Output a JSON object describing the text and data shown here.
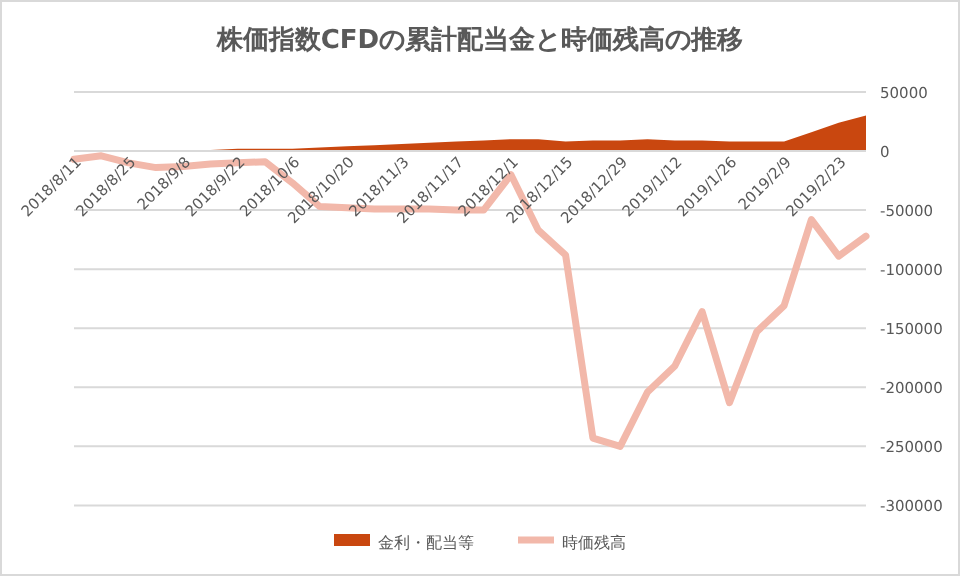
{
  "chart_data": {
    "type": "line",
    "title": "株価指数CFDの累計配当金と時価残高の推移",
    "categories": [
      "2018/8/11",
      null,
      "2018/8/25",
      null,
      "2018/9/8",
      null,
      "2018/9/22",
      null,
      "2018/10/6",
      null,
      "2018/10/20",
      null,
      "2018/11/3",
      null,
      "2018/11/17",
      null,
      "2018/12/1",
      null,
      "2018/12/15",
      null,
      "2018/12/29",
      null,
      "2019/1/12",
      null,
      "2019/1/26",
      null,
      "2019/2/9",
      null,
      "2019/2/23",
      null
    ],
    "series": [
      {
        "name": "金利・配当等",
        "type": "area",
        "color": "#c9470f",
        "values": [
          0,
          0,
          1000,
          1000,
          1000,
          1000,
          2000,
          2000,
          2000,
          3000,
          4000,
          5000,
          6000,
          7000,
          8000,
          9000,
          10000,
          10000,
          8000,
          9000,
          9000,
          10000,
          9000,
          9000,
          8000,
          8000,
          8000,
          16000,
          24000,
          30000
        ]
      },
      {
        "name": "時価残高",
        "color": "#f2b8aa",
        "values": [
          -7000,
          -4000,
          -10000,
          -14000,
          -13000,
          -11000,
          -10000,
          -9000,
          -27000,
          -47000,
          -48000,
          -49000,
          -49000,
          -49000,
          -50000,
          -50000,
          -20000,
          -67000,
          -88000,
          -243000,
          -250000,
          -204000,
          -182000,
          -136000,
          -213000,
          -153000,
          -131000,
          -58000,
          -89000,
          -72000
        ]
      }
    ],
    "ylim": [
      -300000,
      50000
    ],
    "yticks": [
      50000,
      0,
      -50000,
      -100000,
      -150000,
      -200000,
      -250000,
      -300000
    ],
    "grid": "y",
    "legend": "bottom"
  }
}
